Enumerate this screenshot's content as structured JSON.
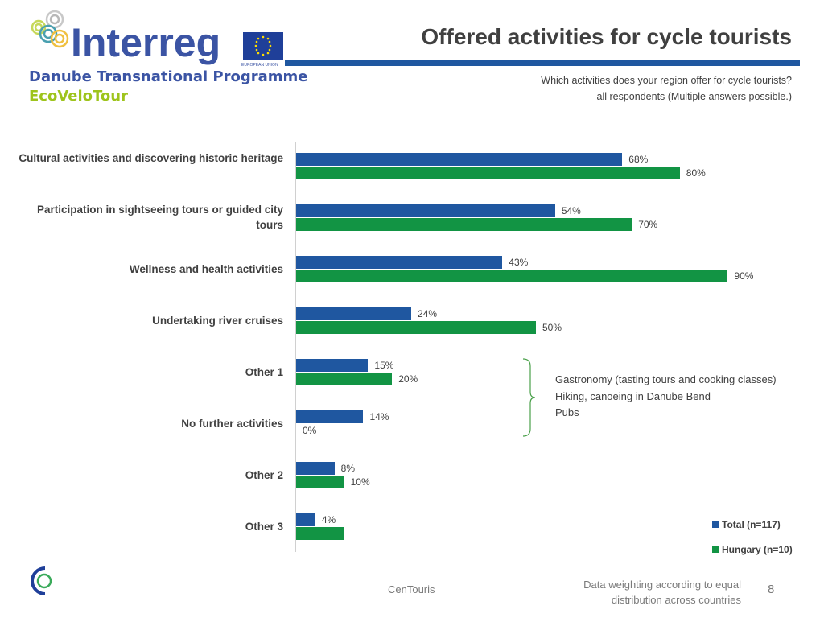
{
  "header": {
    "logo_text": "Interreg",
    "eu_label": "EUROPEAN UNION",
    "programme": "Danube Transnational Programme",
    "project": "EcoVeloTour",
    "title": "Offered activities for cycle tourists",
    "question": "Which activities does your region offer for cycle tourists?",
    "base": "all respondents (Multiple answers possible.)"
  },
  "chart_data": {
    "type": "bar",
    "orientation": "horizontal",
    "title": "Offered activities for cycle tourists",
    "categories": [
      "Cultural activities and discovering historic heritage",
      "Participation in sightseeing tours or guided city tours",
      "Wellness and health activities",
      "Undertaking river cruises",
      "Other 1",
      "No further activities",
      "Other 2",
      "Other 3"
    ],
    "series": [
      {
        "name": "Total (n=117)",
        "color": "#1f57a0",
        "values": [
          68,
          54,
          43,
          24,
          15,
          14,
          8,
          4
        ],
        "labels": [
          "68%",
          "54%",
          "43%",
          "24%",
          "15%",
          "14%",
          "8%",
          "4%"
        ]
      },
      {
        "name": "Hungary (n=10)",
        "color": "#129444",
        "values": [
          80,
          70,
          90,
          50,
          20,
          0,
          10,
          10
        ],
        "labels": [
          "80%",
          "70%",
          "90%",
          "50%",
          "20%",
          "0%",
          "10%",
          ""
        ]
      }
    ],
    "xlim": [
      0,
      100
    ],
    "legend_position": "bottom-right",
    "annotation": [
      "Gastronomy (tasting tours and cooking classes)",
      "Hiking, canoeing in Danube Bend",
      "Pubs"
    ]
  },
  "footer": {
    "source": "CenTouris",
    "note_line1": "Data weighting according to equal",
    "note_line2": "distribution across countries",
    "page": "8"
  }
}
